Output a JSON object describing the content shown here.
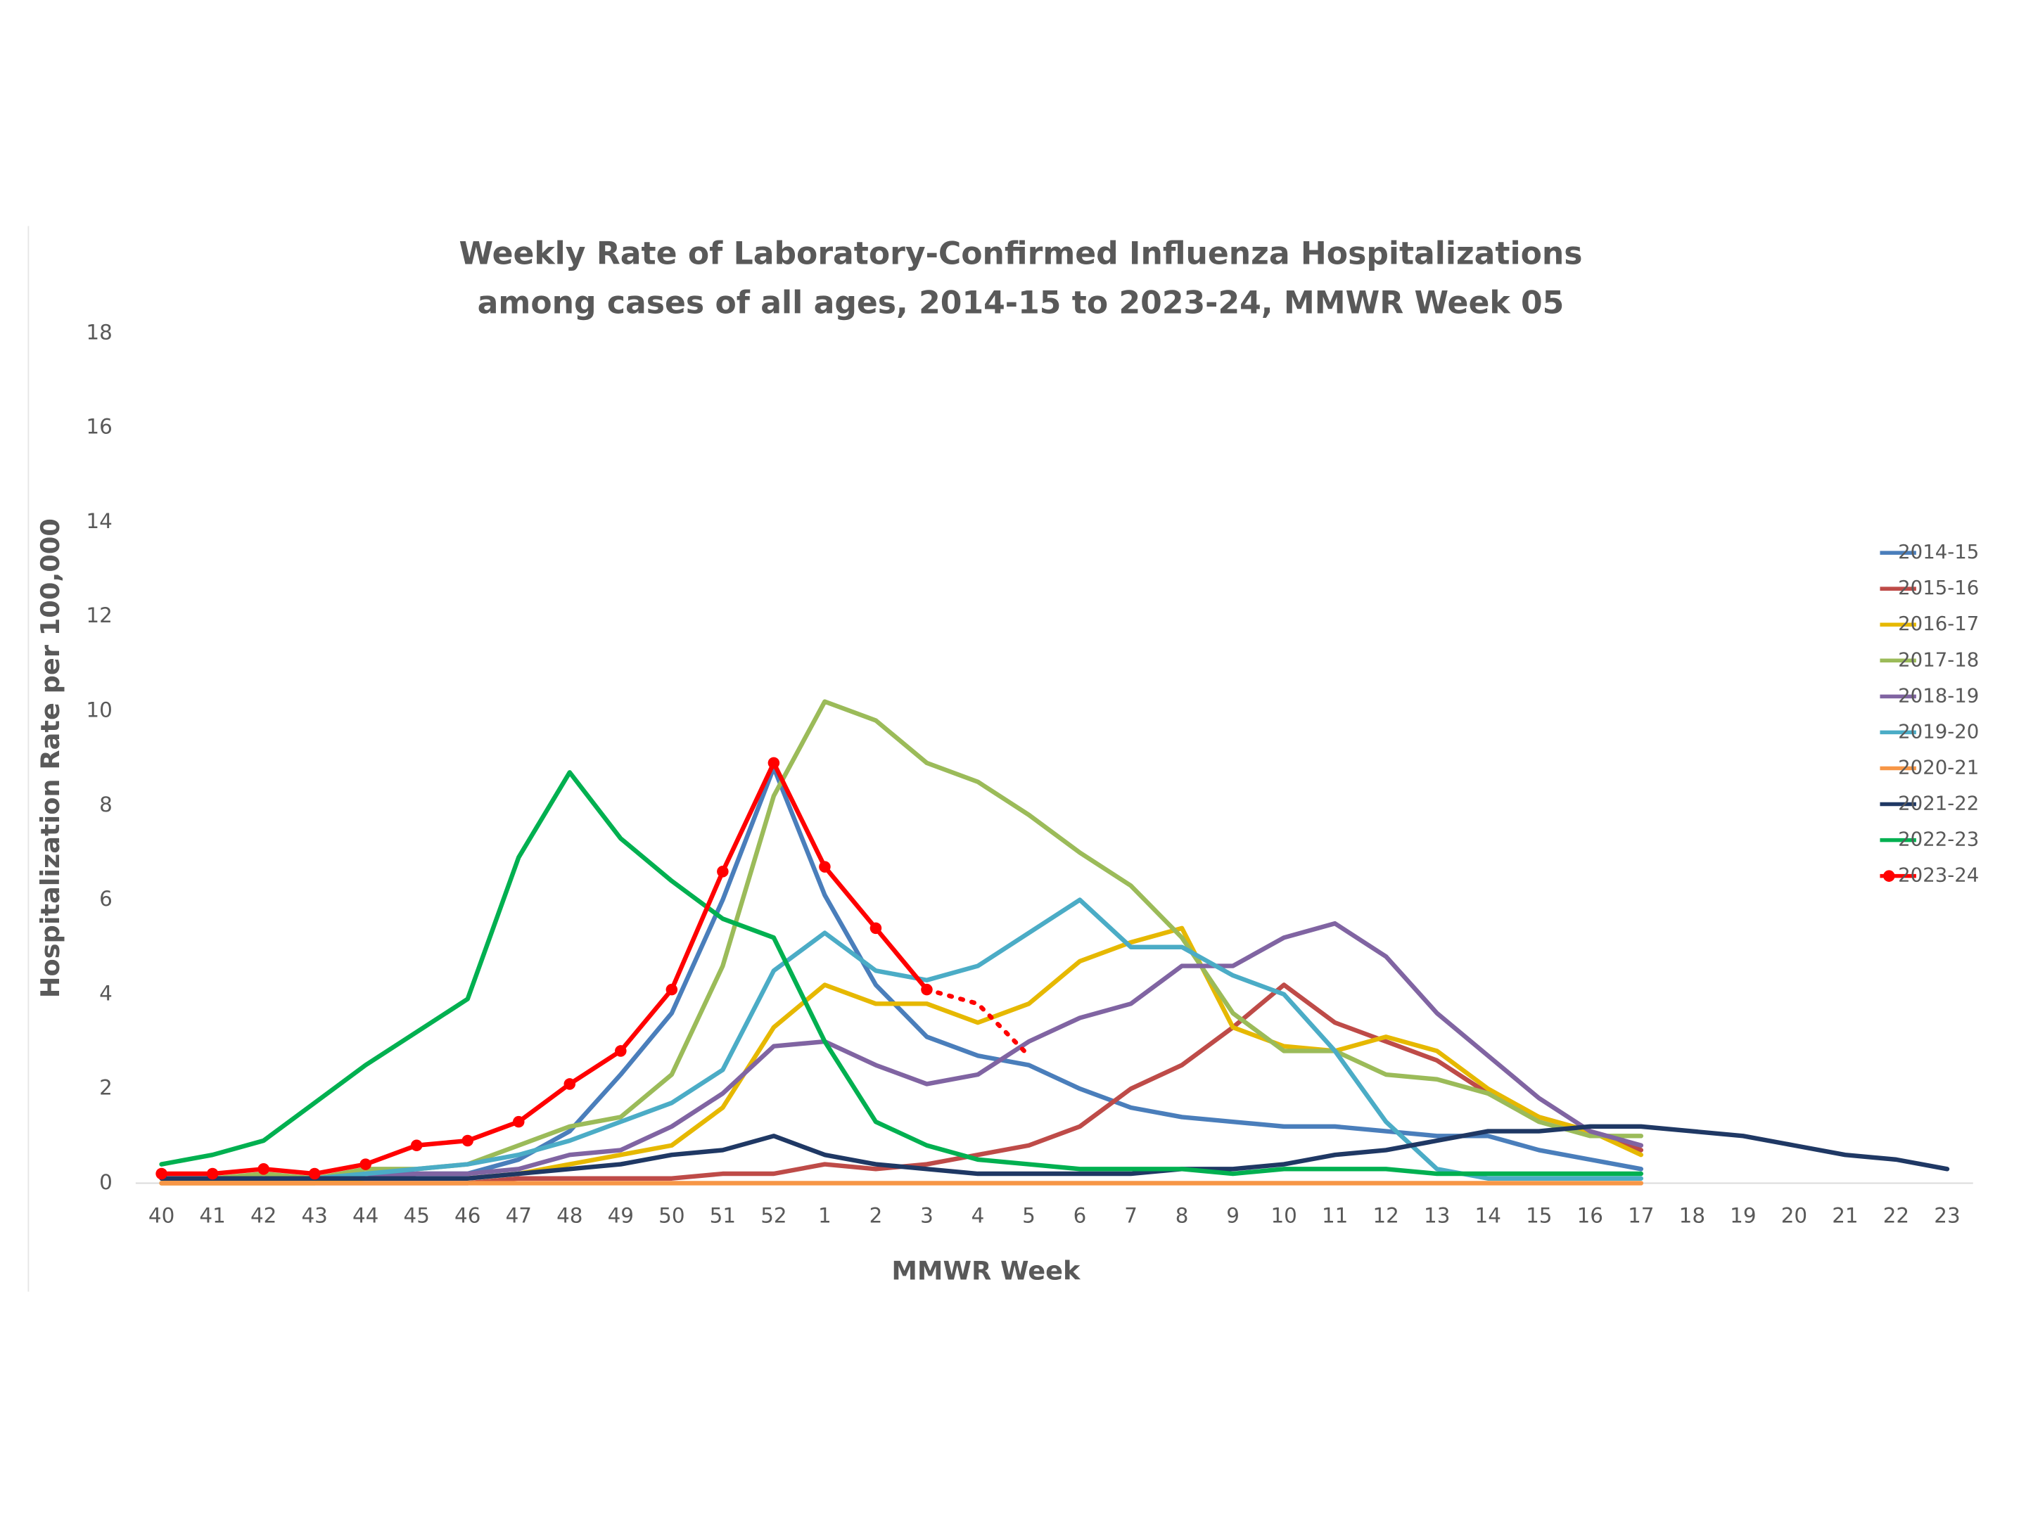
{
  "chart_data": {
    "type": "line",
    "title": [
      "Weekly Rate of Laboratory-Confirmed Influenza Hospitalizations",
      "among cases of all ages, 2014-15 to 2023-24, MMWR Week 05"
    ],
    "x_label": "MMWR Week",
    "y_label": "Hospitalization Rate per 100,000",
    "categories": [
      "40",
      "41",
      "42",
      "43",
      "44",
      "45",
      "46",
      "47",
      "48",
      "49",
      "50",
      "51",
      "52",
      "1",
      "2",
      "3",
      "4",
      "5",
      "6",
      "7",
      "8",
      "9",
      "10",
      "11",
      "12",
      "13",
      "14",
      "15",
      "16",
      "17",
      "18",
      "19",
      "20",
      "21",
      "22",
      "23"
    ],
    "ylim": [
      0,
      18
    ],
    "yticks": [
      0,
      2,
      4,
      6,
      8,
      10,
      12,
      14,
      16,
      18
    ],
    "grid": false,
    "legend": "right",
    "series": [
      {
        "name": "2014-15",
        "color": "#4a7ebb",
        "values": [
          0.1,
          0.1,
          0.1,
          0.1,
          0.2,
          0.2,
          0.2,
          0.5,
          1.1,
          2.3,
          3.6,
          6.0,
          8.8,
          6.1,
          4.2,
          3.1,
          2.7,
          2.5,
          2.0,
          1.6,
          1.4,
          1.3,
          1.2,
          1.2,
          1.1,
          1.0,
          1.0,
          0.7,
          0.5,
          0.3,
          null,
          null,
          null,
          null,
          null,
          null
        ]
      },
      {
        "name": "2015-16",
        "color": "#be4b48",
        "values": [
          0,
          0,
          0,
          0,
          0,
          0,
          0,
          0.1,
          0.1,
          0.1,
          0.1,
          0.2,
          0.2,
          0.4,
          0.3,
          0.4,
          0.6,
          0.8,
          1.2,
          2.0,
          2.5,
          3.3,
          4.2,
          3.4,
          3.0,
          2.6,
          1.9,
          1.4,
          1.1,
          0.7,
          null,
          null,
          null,
          null,
          null,
          null
        ]
      },
      {
        "name": "2016-17",
        "color": "#e6b800",
        "values": [
          0,
          0,
          0,
          0,
          0.1,
          0.1,
          0.1,
          0.2,
          0.4,
          0.6,
          0.8,
          1.6,
          3.3,
          4.2,
          3.8,
          3.8,
          3.4,
          3.8,
          4.7,
          5.1,
          5.4,
          3.3,
          2.9,
          2.8,
          3.1,
          2.8,
          2.0,
          1.4,
          1.1,
          0.6,
          null,
          null,
          null,
          null,
          null,
          null
        ]
      },
      {
        "name": "2017-18",
        "color": "#9bbb59",
        "values": [
          0.1,
          0.1,
          0.2,
          0.1,
          0.3,
          0.3,
          0.4,
          0.8,
          1.2,
          1.4,
          2.3,
          4.6,
          8.2,
          10.2,
          9.8,
          8.9,
          8.5,
          7.8,
          7.0,
          6.3,
          5.2,
          3.6,
          2.8,
          2.8,
          2.3,
          2.2,
          1.9,
          1.3,
          1.0,
          1.0,
          null,
          null,
          null,
          null,
          null,
          null
        ]
      },
      {
        "name": "2018-19",
        "color": "#8064a2",
        "values": [
          0.1,
          0.1,
          0.1,
          0.1,
          0.1,
          0.2,
          0.2,
          0.3,
          0.6,
          0.7,
          1.2,
          1.9,
          2.9,
          3.0,
          2.5,
          2.1,
          2.3,
          3.0,
          3.5,
          3.8,
          4.6,
          4.6,
          5.2,
          5.5,
          4.8,
          3.6,
          2.7,
          1.8,
          1.1,
          0.8,
          null,
          null,
          null,
          null,
          null,
          null
        ]
      },
      {
        "name": "2019-20",
        "color": "#4bacc6",
        "values": [
          0.1,
          0.1,
          0.1,
          0.1,
          0.2,
          0.3,
          0.4,
          0.6,
          0.9,
          1.3,
          1.7,
          2.4,
          4.5,
          5.3,
          4.5,
          4.3,
          4.6,
          5.3,
          6.0,
          5.0,
          5.0,
          4.4,
          4.0,
          2.8,
          1.3,
          0.3,
          0.1,
          0.1,
          0.1,
          0.1,
          null,
          null,
          null,
          null,
          null,
          null
        ]
      },
      {
        "name": "2020-21",
        "color": "#f79646",
        "values": [
          0,
          0,
          0,
          0,
          0,
          0,
          0,
          0,
          0,
          0,
          0,
          0,
          0,
          0,
          0,
          0,
          0,
          0,
          0,
          0,
          0,
          0,
          0,
          0,
          0,
          0,
          0,
          0,
          0,
          0,
          null,
          null,
          null,
          null,
          null,
          null
        ]
      },
      {
        "name": "2021-22",
        "color": "#1f3864",
        "values": [
          0.1,
          0.1,
          0.1,
          0.1,
          0.1,
          0.1,
          0.1,
          0.2,
          0.3,
          0.4,
          0.6,
          0.7,
          1.0,
          0.6,
          0.4,
          0.3,
          0.2,
          0.2,
          0.2,
          0.2,
          0.3,
          0.3,
          0.4,
          0.6,
          0.7,
          0.9,
          1.1,
          1.1,
          1.2,
          1.2,
          1.1,
          1.0,
          0.8,
          0.6,
          0.5,
          0.3
        ]
      },
      {
        "name": "2022-23",
        "color": "#00b050",
        "values": [
          0.4,
          0.6,
          0.9,
          1.7,
          2.5,
          3.2,
          3.9,
          6.9,
          8.7,
          7.3,
          6.4,
          5.6,
          5.2,
          3.0,
          1.3,
          0.8,
          0.5,
          0.4,
          0.3,
          0.3,
          0.3,
          0.2,
          0.3,
          0.3,
          0.3,
          0.2,
          0.2,
          0.2,
          0.2,
          0.2,
          null,
          null,
          null,
          null,
          null,
          null
        ]
      },
      {
        "name": "2023-24",
        "color": "#ff0000",
        "markers": true,
        "values": [
          0.2,
          0.2,
          0.3,
          0.2,
          0.4,
          0.8,
          0.9,
          1.3,
          2.1,
          2.8,
          4.1,
          6.6,
          8.9,
          6.7,
          5.4,
          4.1,
          null,
          null,
          null,
          null,
          null,
          null,
          null,
          null,
          null,
          null,
          null,
          null,
          null,
          null,
          null,
          null,
          null,
          null,
          null,
          null
        ],
        "projected_values": [
          null,
          null,
          null,
          null,
          null,
          null,
          null,
          null,
          null,
          null,
          null,
          null,
          null,
          null,
          null,
          4.1,
          3.8,
          2.7,
          null,
          null,
          null,
          null,
          null,
          null,
          null,
          null,
          null,
          null,
          null,
          null,
          null,
          null,
          null,
          null,
          null,
          null
        ]
      }
    ]
  }
}
